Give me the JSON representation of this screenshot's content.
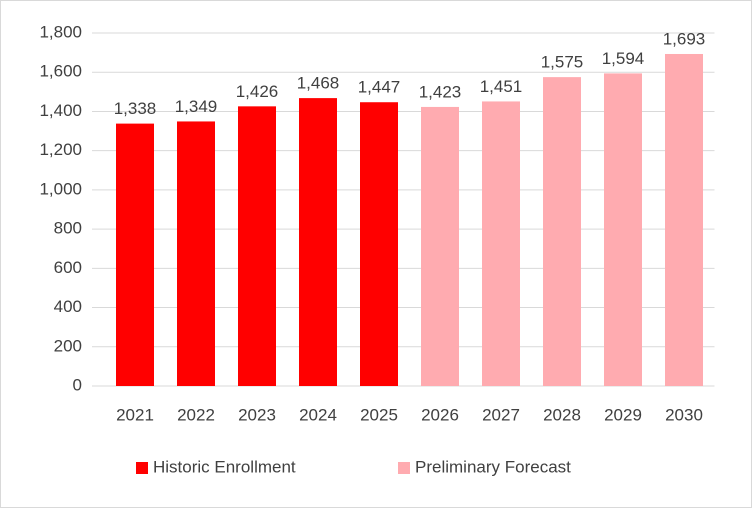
{
  "chart_data": {
    "type": "bar",
    "categories": [
      "2021",
      "2022",
      "2023",
      "2024",
      "2025",
      "2026",
      "2027",
      "2028",
      "2029",
      "2030"
    ],
    "series": [
      {
        "name": "Historic Enrollment",
        "color": "#ff0000",
        "values": [
          1338,
          1349,
          1426,
          1468,
          1447,
          null,
          null,
          null,
          null,
          null
        ],
        "value_labels": [
          "1,338",
          "1,349",
          "1,426",
          "1,468",
          "1,447",
          null,
          null,
          null,
          null,
          null
        ]
      },
      {
        "name": "Preliminary Forecast",
        "color": "#ffabb0",
        "values": [
          null,
          null,
          null,
          null,
          null,
          1423,
          1451,
          1575,
          1594,
          1693
        ],
        "value_labels": [
          null,
          null,
          null,
          null,
          null,
          "1,423",
          "1,451",
          "1,575",
          "1,594",
          "1,693"
        ]
      }
    ],
    "ylim": [
      0,
      1800
    ],
    "yticks": [
      0,
      200,
      400,
      600,
      800,
      {
        "value": 1000,
        "label": "1,000"
      },
      {
        "value": 1200,
        "label": "1,200"
      },
      {
        "value": 1400,
        "label": "1,400"
      },
      {
        "value": 1600,
        "label": "1,600"
      },
      {
        "value": 1800,
        "label": "1,800"
      }
    ],
    "grid": true,
    "legend": "bottom"
  }
}
